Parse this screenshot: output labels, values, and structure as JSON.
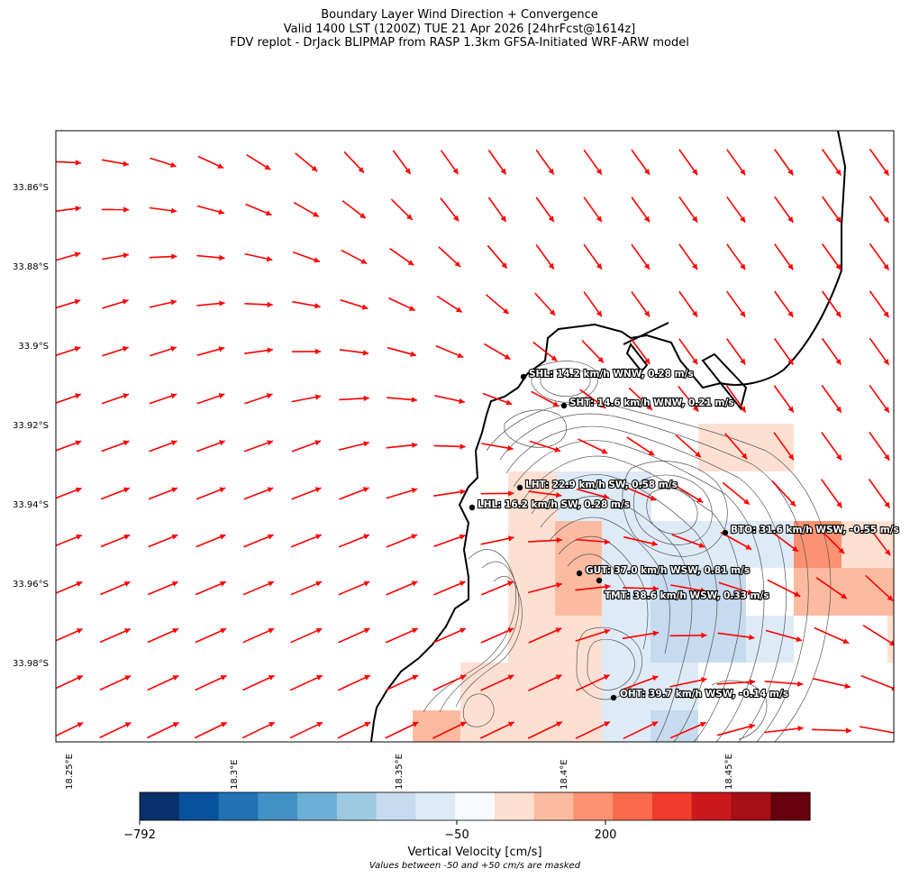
{
  "title": {
    "line1": "Boundary Layer Wind Direction + Convergence",
    "line2": "Valid 1400 LST (1200Z) TUE 21 Apr 2026 [24hrFcst@1614z]",
    "line3": "FDV replot - DrJack BLIPMAP from RASP 1.3km GFSA-Initiated WRF-ARW model"
  },
  "axes": {
    "lat_ticks": [
      "33.86°S",
      "33.88°S",
      "33.9°S",
      "33.92°S",
      "33.94°S",
      "33.96°S",
      "33.98°S"
    ],
    "lon_ticks": [
      "18.25°E",
      "18.3°E",
      "18.35°E",
      "18.4°E",
      "18.45°E"
    ]
  },
  "stations": [
    {
      "code": "SHL",
      "label": "SHL: 14.2 km/h WNW, 0.28 m/s"
    },
    {
      "code": "SHT",
      "label": "SHT: 14.6 km/h WNW, 0.21 m/s"
    },
    {
      "code": "LHT",
      "label": "LHT: 22.9 km/h SW, 0.58 m/s"
    },
    {
      "code": "LHL",
      "label": "LHL: 16.2 km/h SW, 0.28 m/s"
    },
    {
      "code": "BTO",
      "label": "BTO: 31.6 km/h WSW, -0.55 m/s"
    },
    {
      "code": "GUT",
      "label": "GUT: 37.0 km/h WSW, 0.81 m/s"
    },
    {
      "code": "TMT",
      "label": "TMT: 38.6 km/h WSW, 0.33 m/s"
    },
    {
      "code": "OHT",
      "label": "OHT: 39.7 km/h WSW, -0.14 m/s"
    }
  ],
  "colorbar": {
    "ticks": [
      "−792",
      "−50",
      "200"
    ],
    "label": "Vertical Velocity [cm/s]",
    "note": "Values between -50 and +50 cm/s are masked",
    "colors": [
      "#08306b",
      "#08519c",
      "#2171b5",
      "#4292c6",
      "#6baed6",
      "#9ecae1",
      "#c6dbef",
      "#deebf7",
      "#f7fbff",
      "#fee0d2",
      "#fcbba1",
      "#fc9272",
      "#fb6a4a",
      "#ef3b2c",
      "#cb181d",
      "#a50f15",
      "#67000d"
    ]
  },
  "wind_color": "#ff0000"
}
